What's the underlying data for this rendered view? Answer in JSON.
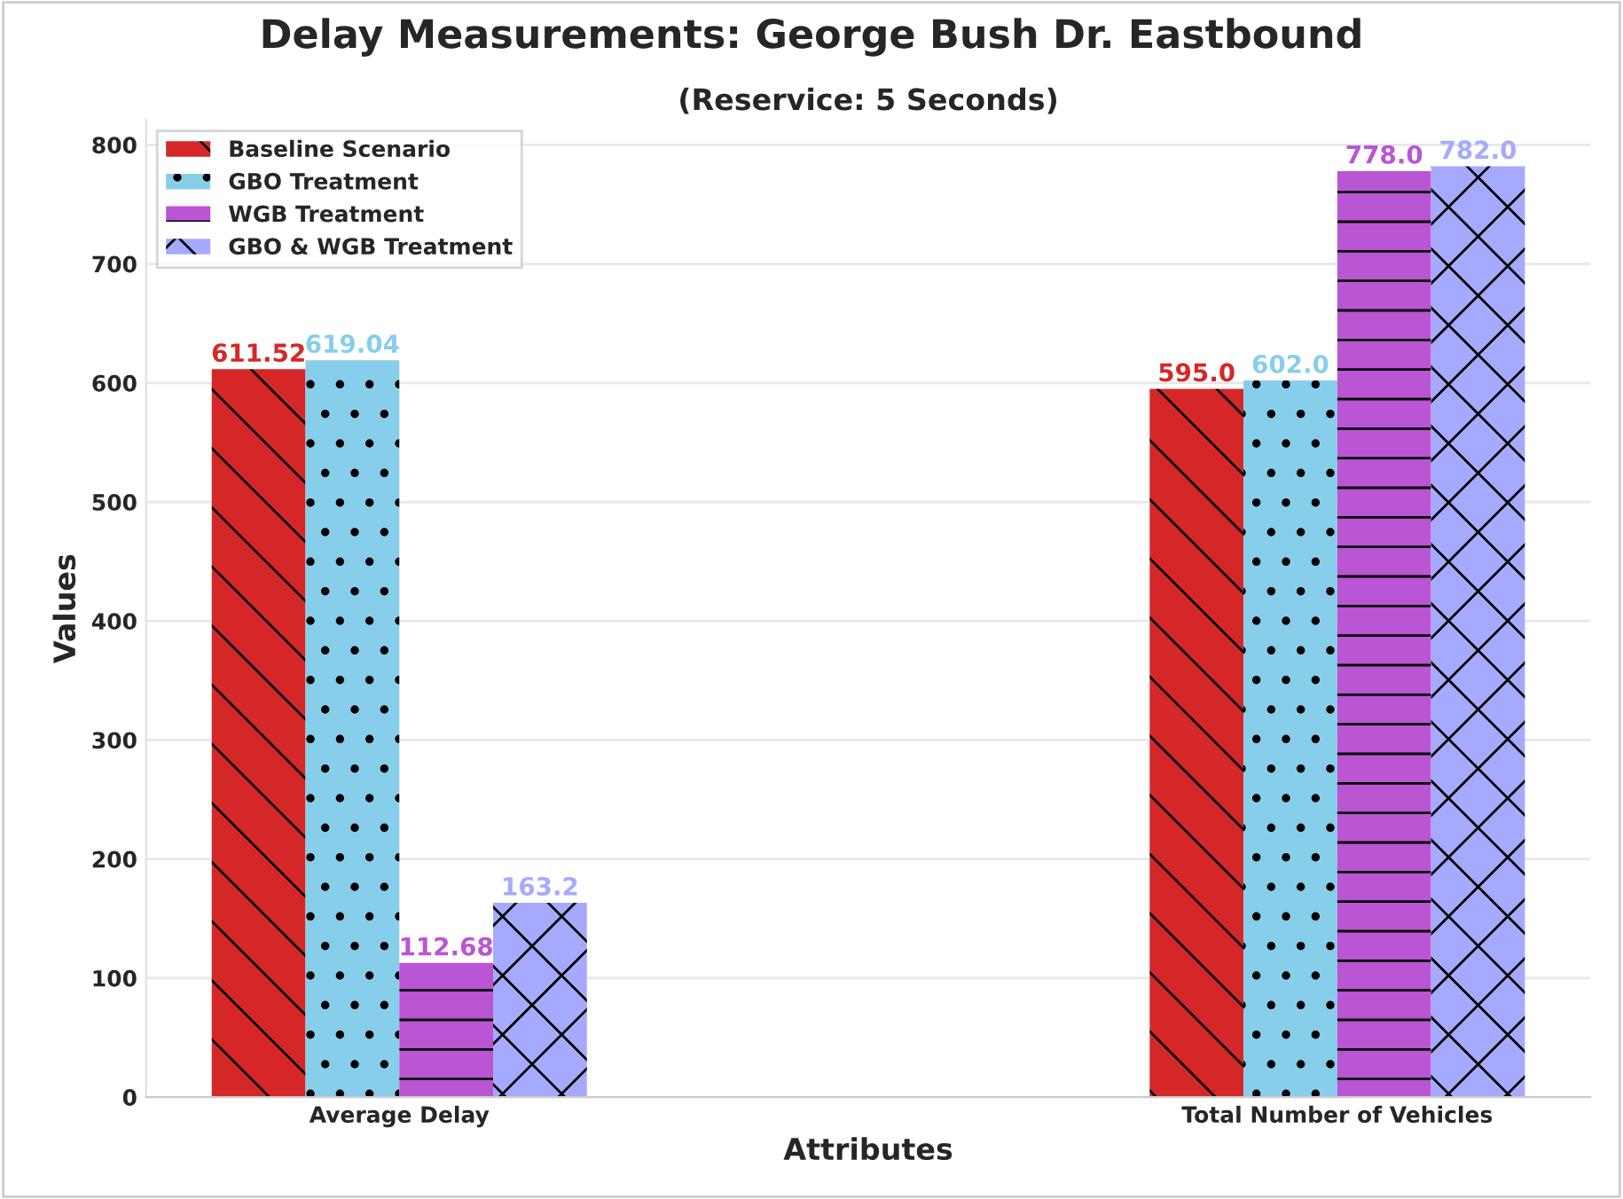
{
  "chart_data": {
    "type": "bar",
    "title": "Delay Measurements: George Bush Dr. Eastbound",
    "subtitle": "(Reservice: 5 Seconds)",
    "xlabel": "Attributes",
    "ylabel": "Values",
    "categories": [
      "Average Delay",
      "Total Number of Vehicles"
    ],
    "series": [
      {
        "name": "Baseline Scenario",
        "color": "#d62728",
        "values": [
          611.52,
          595
        ],
        "value_labels": [
          "611.52",
          "595.0"
        ]
      },
      {
        "name": "GBO Treatment",
        "color": "#87ceeb",
        "values": [
          619.04,
          602
        ],
        "value_labels": [
          "619.04",
          "602.0"
        ]
      },
      {
        "name": "WGB Treatment",
        "color": "#ba55d3",
        "values": [
          112.68,
          778
        ],
        "value_labels": [
          "112.68",
          "778.0"
        ]
      },
      {
        "name": "GBO & WGB Treatment",
        "color": "#a5aaff",
        "values": [
          163.2,
          782
        ],
        "value_labels": [
          "163.2",
          "782.0"
        ]
      }
    ],
    "ylim": [
      0,
      821
    ],
    "yticks": [
      0,
      100,
      200,
      300,
      400,
      500,
      600,
      700,
      800
    ],
    "grid": "y",
    "legend": "top left"
  }
}
